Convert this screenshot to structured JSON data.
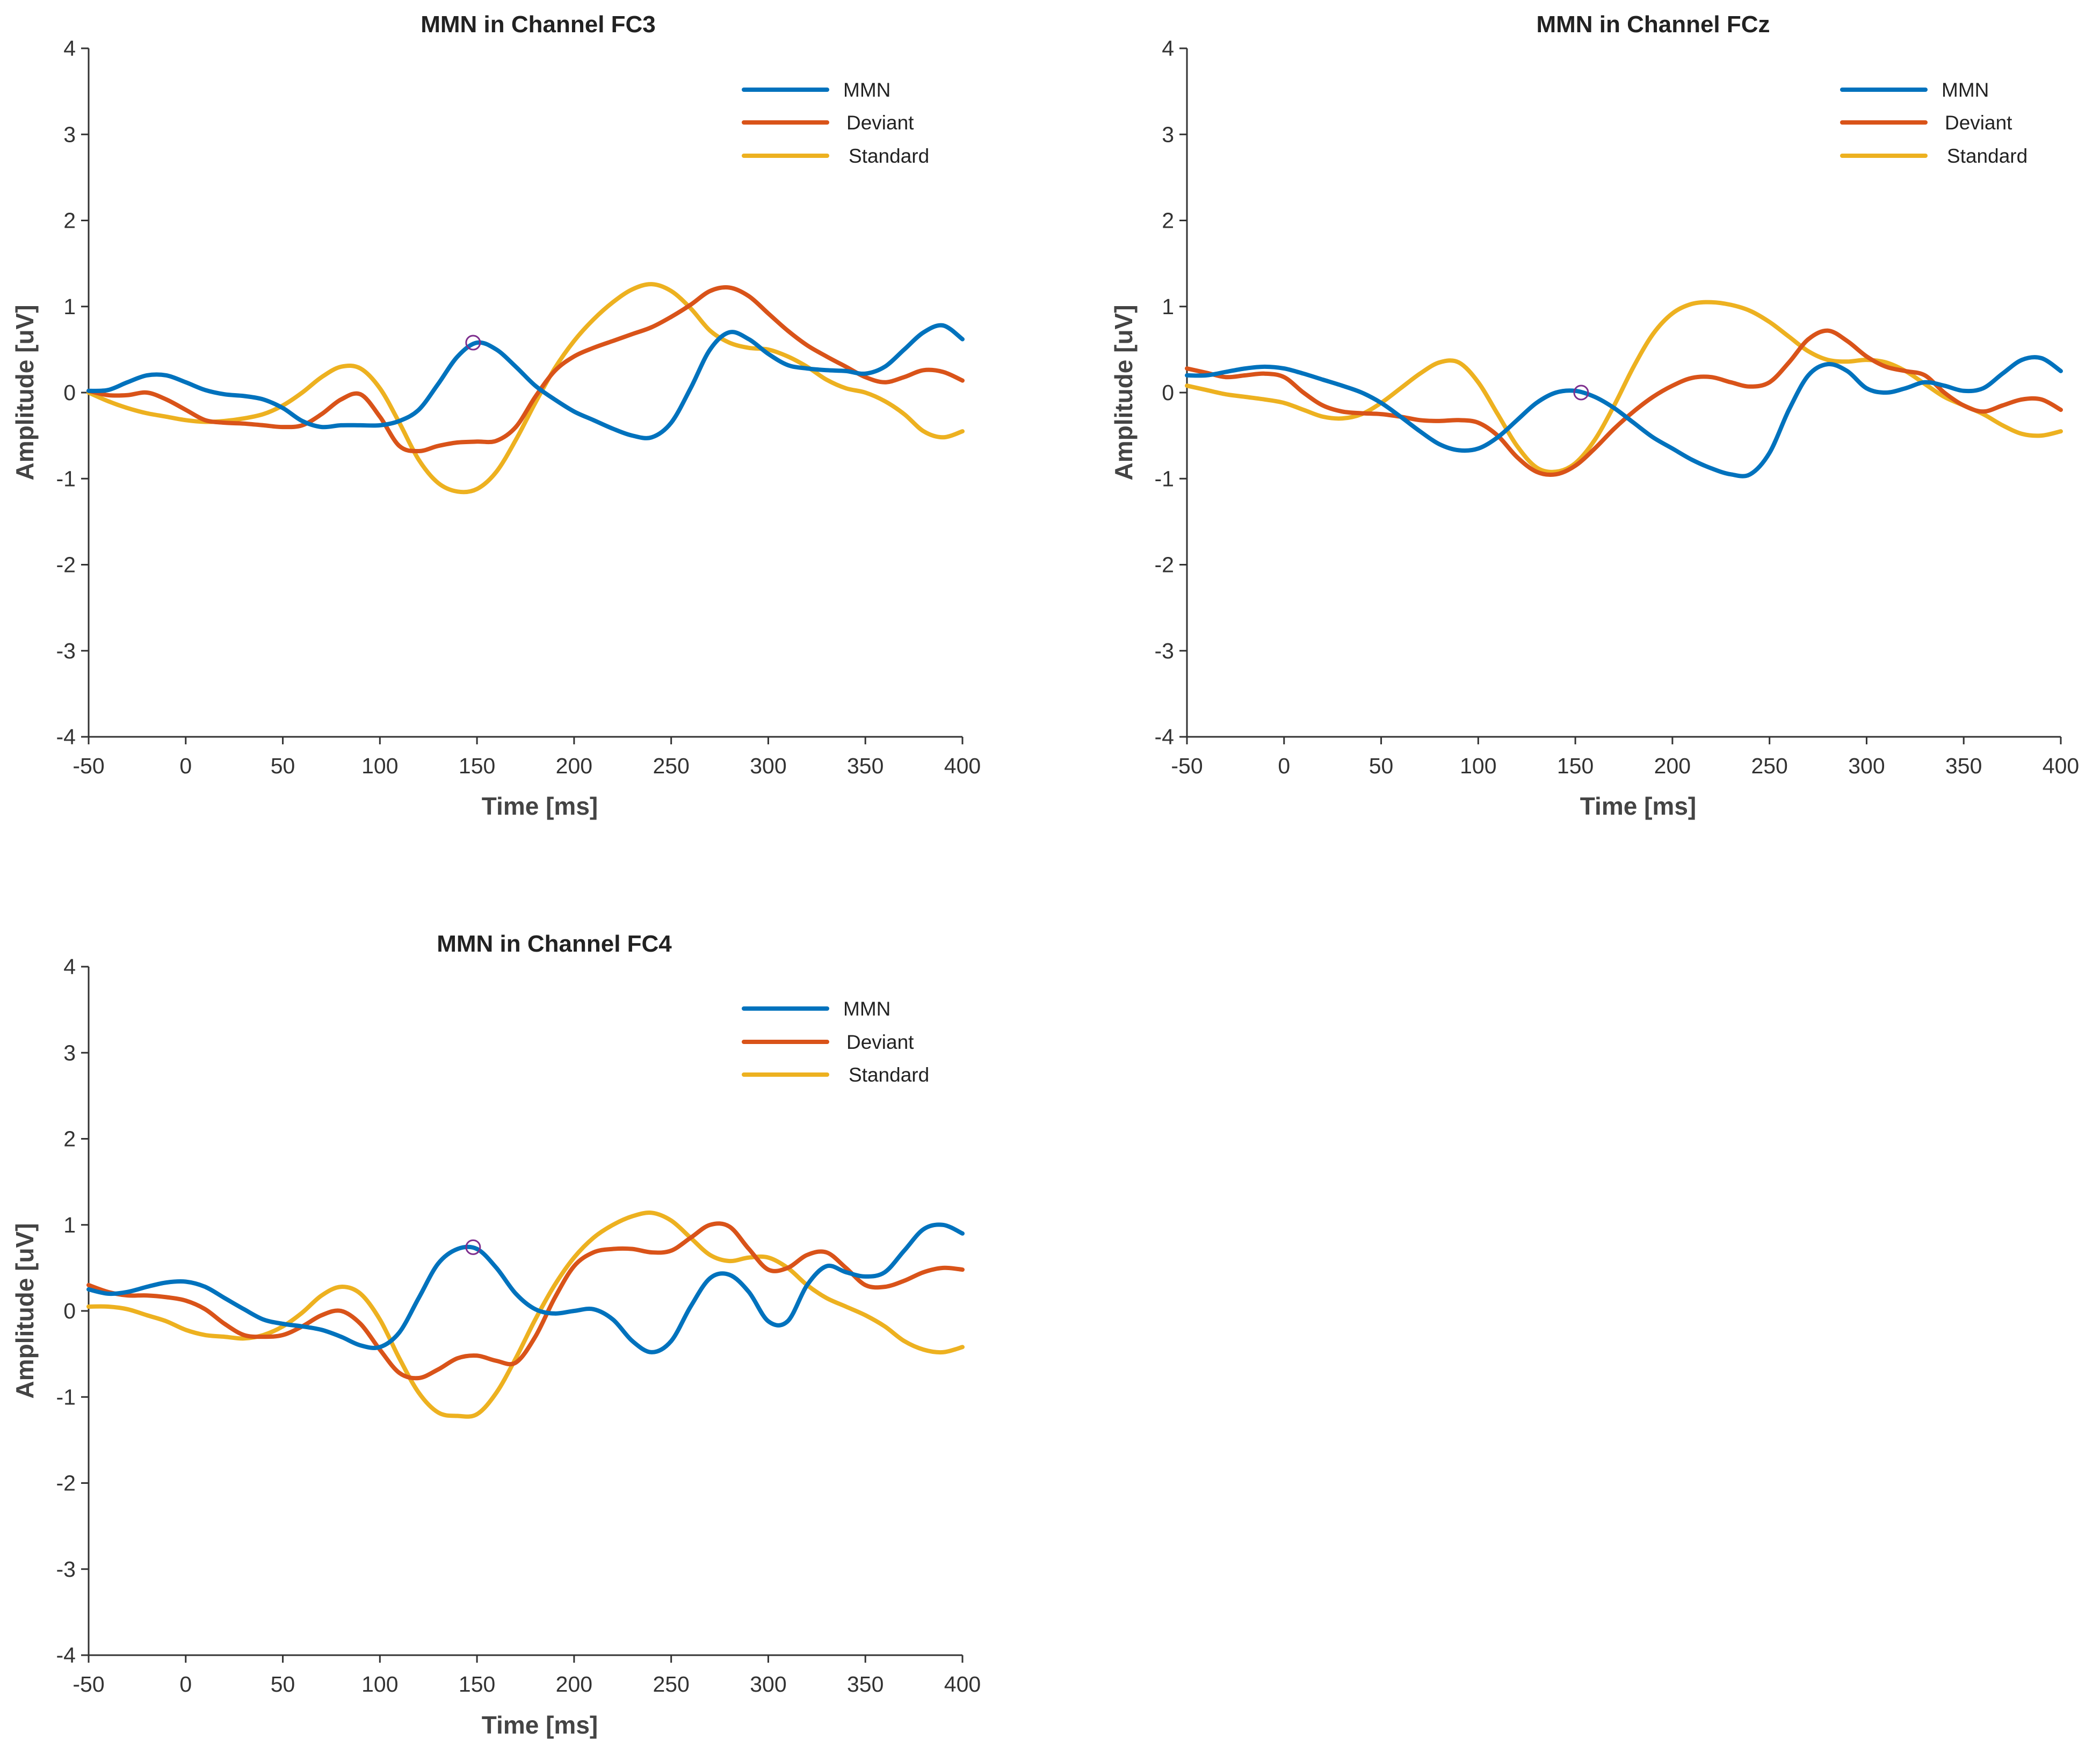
{
  "colors": {
    "MMN": "#0072BD",
    "Deviant": "#D95319",
    "Standard": "#EDB120",
    "marker": "#7E2F8E"
  },
  "chart_data": [
    {
      "type": "line",
      "title": "MMN in Channel FC3",
      "xlabel": "Time [ms]",
      "ylabel": "Amplitude [uV]",
      "xlim": [
        -50,
        400
      ],
      "ylim": [
        -4,
        4
      ],
      "xticks": [
        -50,
        0,
        50,
        100,
        150,
        200,
        250,
        300,
        350,
        400
      ],
      "yticks": [
        -4,
        -3,
        -2,
        -1,
        0,
        1,
        2,
        3,
        4
      ],
      "legend_position": "top-right",
      "series": [
        {
          "name": "MMN",
          "color_key": "MMN",
          "x": [
            -50,
            -40,
            -30,
            -20,
            -10,
            0,
            10,
            20,
            30,
            40,
            50,
            60,
            70,
            80,
            90,
            100,
            110,
            120,
            130,
            140,
            150,
            160,
            170,
            180,
            190,
            200,
            210,
            220,
            230,
            240,
            250,
            260,
            270,
            280,
            290,
            300,
            310,
            320,
            330,
            340,
            350,
            360,
            370,
            380,
            390,
            400
          ],
          "y": [
            0.02,
            0.03,
            0.12,
            0.2,
            0.2,
            0.12,
            0.03,
            -0.02,
            -0.04,
            -0.08,
            -0.18,
            -0.33,
            -0.4,
            -0.38,
            -0.38,
            -0.38,
            -0.33,
            -0.2,
            0.1,
            0.42,
            0.58,
            0.5,
            0.3,
            0.08,
            -0.08,
            -0.22,
            -0.32,
            -0.42,
            -0.5,
            -0.52,
            -0.35,
            0.05,
            0.5,
            0.7,
            0.62,
            0.45,
            0.32,
            0.28,
            0.26,
            0.25,
            0.22,
            0.3,
            0.5,
            0.7,
            0.78,
            0.62
          ]
        },
        {
          "name": "Deviant",
          "color_key": "Deviant",
          "x": [
            -50,
            -40,
            -30,
            -20,
            -10,
            0,
            10,
            20,
            30,
            40,
            50,
            60,
            70,
            80,
            90,
            100,
            110,
            120,
            130,
            140,
            150,
            160,
            170,
            180,
            190,
            200,
            210,
            220,
            230,
            240,
            250,
            260,
            270,
            280,
            290,
            300,
            310,
            320,
            330,
            340,
            350,
            360,
            370,
            380,
            390,
            400
          ],
          "y": [
            0.02,
            -0.03,
            -0.03,
            0.0,
            -0.08,
            -0.2,
            -0.32,
            -0.35,
            -0.36,
            -0.38,
            -0.4,
            -0.38,
            -0.25,
            -0.08,
            -0.02,
            -0.28,
            -0.62,
            -0.68,
            -0.62,
            -0.58,
            -0.57,
            -0.56,
            -0.4,
            -0.05,
            0.25,
            0.42,
            0.52,
            0.6,
            0.68,
            0.76,
            0.88,
            1.02,
            1.18,
            1.22,
            1.12,
            0.92,
            0.72,
            0.55,
            0.42,
            0.3,
            0.18,
            0.12,
            0.18,
            0.26,
            0.24,
            0.14
          ]
        },
        {
          "name": "Standard",
          "color_key": "Standard",
          "x": [
            -50,
            -40,
            -30,
            -20,
            -10,
            0,
            10,
            20,
            30,
            40,
            50,
            60,
            70,
            80,
            90,
            100,
            110,
            120,
            130,
            140,
            150,
            160,
            170,
            180,
            190,
            200,
            210,
            220,
            230,
            240,
            250,
            260,
            270,
            280,
            290,
            300,
            310,
            320,
            330,
            340,
            350,
            360,
            370,
            380,
            390,
            400
          ],
          "y": [
            0.0,
            -0.1,
            -0.18,
            -0.24,
            -0.28,
            -0.32,
            -0.34,
            -0.33,
            -0.3,
            -0.25,
            -0.15,
            0.0,
            0.18,
            0.3,
            0.28,
            0.05,
            -0.35,
            -0.78,
            -1.05,
            -1.15,
            -1.12,
            -0.92,
            -0.55,
            -0.12,
            0.28,
            0.6,
            0.85,
            1.05,
            1.2,
            1.26,
            1.18,
            0.98,
            0.72,
            0.58,
            0.52,
            0.5,
            0.42,
            0.3,
            0.15,
            0.05,
            0.0,
            -0.1,
            -0.25,
            -0.45,
            -0.52,
            -0.45
          ]
        }
      ],
      "markers": [
        {
          "x": 148,
          "y": 0.58,
          "series": "MMN"
        }
      ]
    },
    {
      "type": "line",
      "title": "MMN in Channel FCz",
      "xlabel": "Time [ms]",
      "ylabel": "Amplitude [uV]",
      "xlim": [
        -50,
        400
      ],
      "ylim": [
        -4,
        4
      ],
      "xticks": [
        -50,
        0,
        50,
        100,
        150,
        200,
        250,
        300,
        350,
        400
      ],
      "yticks": [
        -4,
        -3,
        -2,
        -1,
        0,
        1,
        2,
        3,
        4
      ],
      "legend_position": "top-right",
      "series": [
        {
          "name": "MMN",
          "color_key": "MMN",
          "x": [
            -50,
            -40,
            -30,
            -20,
            -10,
            0,
            10,
            20,
            30,
            40,
            50,
            60,
            70,
            80,
            90,
            100,
            110,
            120,
            130,
            140,
            150,
            160,
            170,
            180,
            190,
            200,
            210,
            220,
            230,
            240,
            250,
            260,
            270,
            280,
            290,
            300,
            310,
            320,
            330,
            340,
            350,
            360,
            370,
            380,
            390,
            400
          ],
          "y": [
            0.2,
            0.2,
            0.24,
            0.28,
            0.3,
            0.28,
            0.22,
            0.15,
            0.08,
            0.0,
            -0.12,
            -0.28,
            -0.45,
            -0.6,
            -0.67,
            -0.65,
            -0.52,
            -0.32,
            -0.12,
            0.0,
            0.02,
            -0.05,
            -0.18,
            -0.35,
            -0.52,
            -0.65,
            -0.78,
            -0.88,
            -0.95,
            -0.95,
            -0.7,
            -0.2,
            0.2,
            0.33,
            0.25,
            0.05,
            0.0,
            0.05,
            0.12,
            0.08,
            0.02,
            0.05,
            0.22,
            0.38,
            0.4,
            0.25
          ]
        },
        {
          "name": "Deviant",
          "color_key": "Deviant",
          "x": [
            -50,
            -40,
            -30,
            -20,
            -10,
            0,
            10,
            20,
            30,
            40,
            50,
            60,
            70,
            80,
            90,
            100,
            110,
            120,
            130,
            140,
            150,
            160,
            170,
            180,
            190,
            200,
            210,
            220,
            230,
            240,
            250,
            260,
            270,
            280,
            290,
            300,
            310,
            320,
            330,
            340,
            350,
            360,
            370,
            380,
            390,
            400
          ],
          "y": [
            0.28,
            0.23,
            0.18,
            0.2,
            0.22,
            0.18,
            0.0,
            -0.15,
            -0.22,
            -0.24,
            -0.25,
            -0.28,
            -0.32,
            -0.33,
            -0.32,
            -0.35,
            -0.5,
            -0.75,
            -0.92,
            -0.95,
            -0.85,
            -0.65,
            -0.42,
            -0.22,
            -0.05,
            0.08,
            0.17,
            0.18,
            0.12,
            0.07,
            0.12,
            0.35,
            0.62,
            0.72,
            0.6,
            0.42,
            0.3,
            0.25,
            0.2,
            0.0,
            -0.15,
            -0.22,
            -0.15,
            -0.08,
            -0.08,
            -0.2
          ]
        },
        {
          "name": "Standard",
          "color_key": "Standard",
          "x": [
            -50,
            -40,
            -30,
            -20,
            -10,
            0,
            10,
            20,
            30,
            40,
            50,
            60,
            70,
            80,
            90,
            100,
            110,
            120,
            130,
            140,
            150,
            160,
            170,
            180,
            190,
            200,
            210,
            220,
            230,
            240,
            250,
            260,
            270,
            280,
            290,
            300,
            310,
            320,
            330,
            340,
            350,
            360,
            370,
            380,
            390,
            400
          ],
          "y": [
            0.08,
            0.03,
            -0.02,
            -0.05,
            -0.08,
            -0.12,
            -0.2,
            -0.28,
            -0.3,
            -0.25,
            -0.12,
            0.05,
            0.22,
            0.35,
            0.35,
            0.12,
            -0.25,
            -0.62,
            -0.87,
            -0.92,
            -0.82,
            -0.55,
            -0.15,
            0.3,
            0.68,
            0.92,
            1.03,
            1.05,
            1.02,
            0.95,
            0.82,
            0.65,
            0.48,
            0.38,
            0.36,
            0.38,
            0.35,
            0.25,
            0.1,
            -0.05,
            -0.15,
            -0.25,
            -0.38,
            -0.48,
            -0.5,
            -0.45
          ]
        }
      ],
      "markers": [
        {
          "x": 153,
          "y": 0.0,
          "series": "MMN"
        }
      ]
    },
    {
      "type": "line",
      "title": "MMN in Channel FC4",
      "xlabel": "Time [ms]",
      "ylabel": "Amplitude [uV]",
      "xlim": [
        -50,
        400
      ],
      "ylim": [
        -4,
        4
      ],
      "xticks": [
        -50,
        0,
        50,
        100,
        150,
        200,
        250,
        300,
        350,
        400
      ],
      "yticks": [
        -4,
        -3,
        -2,
        -1,
        0,
        1,
        2,
        3,
        4
      ],
      "legend_position": "top-right",
      "series": [
        {
          "name": "MMN",
          "color_key": "MMN",
          "x": [
            -50,
            -40,
            -30,
            -20,
            -10,
            0,
            10,
            20,
            30,
            40,
            50,
            60,
            70,
            80,
            90,
            100,
            110,
            120,
            130,
            140,
            150,
            160,
            170,
            180,
            190,
            200,
            210,
            220,
            230,
            240,
            250,
            260,
            270,
            280,
            290,
            300,
            310,
            320,
            330,
            340,
            350,
            360,
            370,
            380,
            390,
            400
          ],
          "y": [
            0.25,
            0.2,
            0.22,
            0.28,
            0.33,
            0.34,
            0.28,
            0.15,
            0.02,
            -0.1,
            -0.15,
            -0.18,
            -0.22,
            -0.3,
            -0.4,
            -0.42,
            -0.25,
            0.15,
            0.55,
            0.72,
            0.72,
            0.5,
            0.2,
            0.02,
            -0.03,
            0.0,
            0.02,
            -0.1,
            -0.35,
            -0.48,
            -0.35,
            0.05,
            0.38,
            0.42,
            0.22,
            -0.12,
            -0.12,
            0.3,
            0.52,
            0.45,
            0.4,
            0.45,
            0.7,
            0.95,
            1.0,
            0.9
          ]
        },
        {
          "name": "Deviant",
          "color_key": "Deviant",
          "x": [
            -50,
            -40,
            -30,
            -20,
            -10,
            0,
            10,
            20,
            30,
            40,
            50,
            60,
            70,
            80,
            90,
            100,
            110,
            120,
            130,
            140,
            150,
            160,
            170,
            180,
            190,
            200,
            210,
            220,
            230,
            240,
            250,
            260,
            270,
            280,
            290,
            300,
            310,
            320,
            330,
            340,
            350,
            360,
            370,
            380,
            390,
            400
          ],
          "y": [
            0.3,
            0.22,
            0.18,
            0.18,
            0.16,
            0.12,
            0.02,
            -0.15,
            -0.28,
            -0.3,
            -0.28,
            -0.18,
            -0.05,
            0.0,
            -0.15,
            -0.45,
            -0.72,
            -0.78,
            -0.68,
            -0.55,
            -0.52,
            -0.58,
            -0.6,
            -0.3,
            0.15,
            0.52,
            0.68,
            0.72,
            0.72,
            0.68,
            0.7,
            0.85,
            1.0,
            0.98,
            0.72,
            0.48,
            0.5,
            0.65,
            0.68,
            0.5,
            0.3,
            0.28,
            0.35,
            0.45,
            0.5,
            0.48
          ]
        },
        {
          "name": "Standard",
          "color_key": "Standard",
          "x": [
            -50,
            -40,
            -30,
            -20,
            -10,
            0,
            10,
            20,
            30,
            40,
            50,
            60,
            70,
            80,
            90,
            100,
            110,
            120,
            130,
            140,
            150,
            160,
            170,
            180,
            190,
            200,
            210,
            220,
            230,
            240,
            250,
            260,
            270,
            280,
            290,
            300,
            310,
            320,
            330,
            340,
            350,
            360,
            370,
            380,
            390,
            400
          ],
          "y": [
            0.05,
            0.05,
            0.02,
            -0.05,
            -0.12,
            -0.22,
            -0.28,
            -0.3,
            -0.32,
            -0.28,
            -0.18,
            -0.02,
            0.18,
            0.28,
            0.2,
            -0.1,
            -0.55,
            -0.95,
            -1.18,
            -1.22,
            -1.2,
            -0.95,
            -0.55,
            -0.1,
            0.3,
            0.62,
            0.85,
            1.0,
            1.1,
            1.14,
            1.05,
            0.85,
            0.65,
            0.58,
            0.62,
            0.62,
            0.5,
            0.3,
            0.15,
            0.05,
            -0.05,
            -0.18,
            -0.35,
            -0.45,
            -0.48,
            -0.42
          ]
        }
      ],
      "markers": [
        {
          "x": 148,
          "y": 0.74,
          "series": "MMN"
        }
      ]
    }
  ]
}
